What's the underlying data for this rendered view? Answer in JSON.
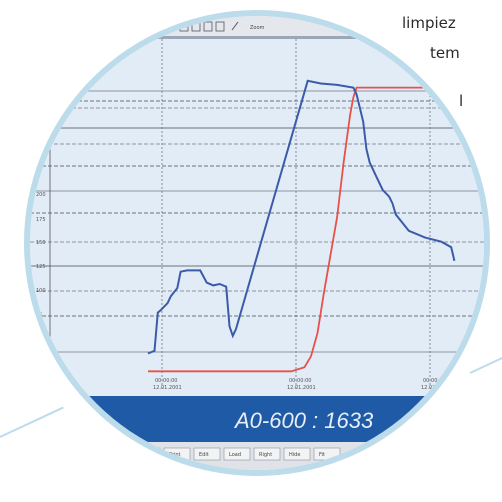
{
  "side_text": [
    "limpiez",
    "tem",
    "l"
  ],
  "toolbar": {
    "zoom_label": "Zoom"
  },
  "status_bar": {
    "readout": "A0-600 : 1633"
  },
  "bottom_buttons": [
    "",
    "Print",
    "Edit",
    "Load",
    "Right",
    "Hide",
    "Fit"
  ],
  "x_tick_labels": [
    {
      "time": "00:00:00",
      "date": "12.01.2001"
    },
    {
      "time": "00:00:00",
      "date": "12.01.2001"
    },
    {
      "time": "00:00:00",
      "date": "12.01.2001"
    }
  ],
  "y_tick_labels": [
    "200",
    "175",
    "150",
    "125",
    "100",
    "75",
    "50"
  ],
  "colors": {
    "blue_series": "#3b5ba8",
    "red_series": "#e8504a",
    "status_bg": "#1f5aa6",
    "lens_border": "#bcdcec"
  },
  "chart_data": {
    "type": "line",
    "series": [
      {
        "x": [
          0,
          2,
          3,
          4,
          6,
          7,
          9,
          10,
          12,
          16,
          18,
          20,
          22,
          24,
          25,
          26,
          27,
          49,
          53,
          58,
          63,
          64,
          66,
          67,
          68,
          70,
          72,
          74,
          75,
          76,
          80,
          85,
          90,
          93,
          94
        ],
        "y": [
          10,
          12,
          40,
          42,
          47,
          52,
          58,
          70,
          71,
          71,
          62,
          60,
          61,
          59,
          30,
          23,
          28,
          210,
          208,
          207,
          205,
          200,
          180,
          160,
          150,
          140,
          130,
          125,
          120,
          112,
          100,
          95,
          92,
          88,
          78
        ]
      },
      {
        "x": [
          0,
          44,
          48,
          50,
          52,
          54,
          58,
          60,
          62,
          63,
          64,
          70,
          100
        ],
        "y": [
          -3,
          -3,
          0,
          8,
          25,
          55,
          110,
          150,
          185,
          198,
          205,
          205,
          205
        ]
      }
    ],
    "ylim": [
      -5,
      215
    ],
    "xlim": [
      0,
      100
    ],
    "grid": true
  }
}
